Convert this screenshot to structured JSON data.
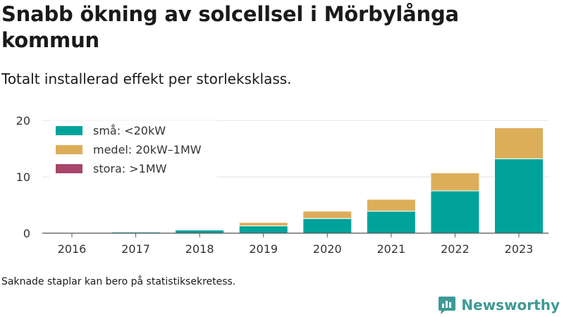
{
  "title": "Snabb ökning av solcellsel i Mörbylånga kommun",
  "subtitle": "Totalt installerad effekt per storleksklass.",
  "footnote": "Saknade staplar kan bero på statistiksekretess.",
  "brand": {
    "name": "Newsworthy",
    "icon": "newsworthy-logo-icon",
    "color": "#3d9a96"
  },
  "chart_data": {
    "type": "bar",
    "stacked": true,
    "categories": [
      "2016",
      "2017",
      "2018",
      "2019",
      "2020",
      "2021",
      "2022",
      "2023"
    ],
    "series": [
      {
        "name": "små: <20kW",
        "color": "#00a39a",
        "values": [
          0.05,
          0.2,
          0.55,
          1.3,
          2.6,
          3.9,
          7.5,
          13.2
        ]
      },
      {
        "name": "medel: 20kW–1MW",
        "color": "#dcae5a",
        "values": [
          0,
          0,
          0,
          0.6,
          1.3,
          2.1,
          3.2,
          5.5
        ]
      },
      {
        "name": "stora: >1MW",
        "color": "#a8466c",
        "values": [
          0,
          0,
          0,
          0,
          0,
          0,
          0,
          0
        ]
      }
    ],
    "ylim": [
      0,
      20
    ],
    "yticks": [
      "0",
      "10",
      "20"
    ],
    "grid": true,
    "legend_position": "top-left"
  }
}
